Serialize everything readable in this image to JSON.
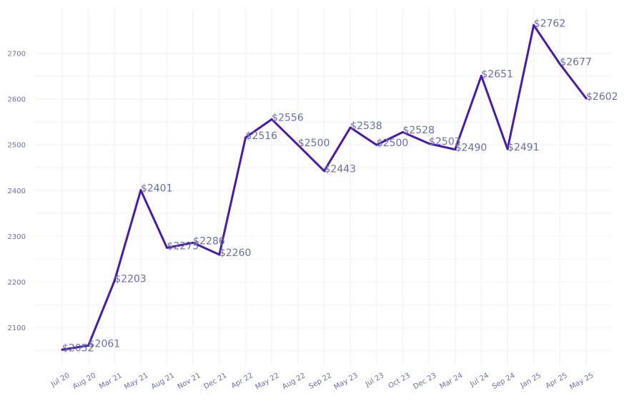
{
  "chart_data": {
    "type": "line",
    "title": "",
    "xlabel": "",
    "ylabel": "",
    "categories": [
      "Jul 20",
      "Aug 20",
      "Mar 21",
      "May 21",
      "Aug 21",
      "Nov 21",
      "Dec 21",
      "Apr 22",
      "May 22",
      "Aug 22",
      "Sep 22",
      "May 23",
      "Jul 23",
      "Oct 23",
      "Dec 23",
      "Mar 24",
      "Jul 24",
      "Sep 24",
      "Jan 25",
      "Apr 25",
      "May 25"
    ],
    "values": [
      2052,
      2061,
      2203,
      2401,
      2275,
      2286,
      2260,
      2516,
      2556,
      2500,
      2443,
      2538,
      2500,
      2528,
      2503,
      2490,
      2651,
      2491,
      2762,
      2677,
      2602
    ],
    "data_labels": [
      "$2052",
      "$2061",
      "$2203",
      "$2401",
      "$2275",
      "$2286",
      "$2260",
      "$2516",
      "$2556",
      "$2500",
      "$2443",
      "$2538",
      "$2500",
      "$2528",
      "$2503",
      "$2490",
      "$2651",
      "$2491",
      "$2762",
      "$2677",
      "$2602"
    ],
    "y_ticks": [
      2100,
      2200,
      2300,
      2400,
      2500,
      2600,
      2700
    ],
    "ylim": [
      2020,
      2790
    ],
    "grid": true,
    "legend": "none",
    "colors": {
      "line": "#4a1aa8",
      "label": "#6b6fa6",
      "grid": "#f6f6fb"
    }
  }
}
